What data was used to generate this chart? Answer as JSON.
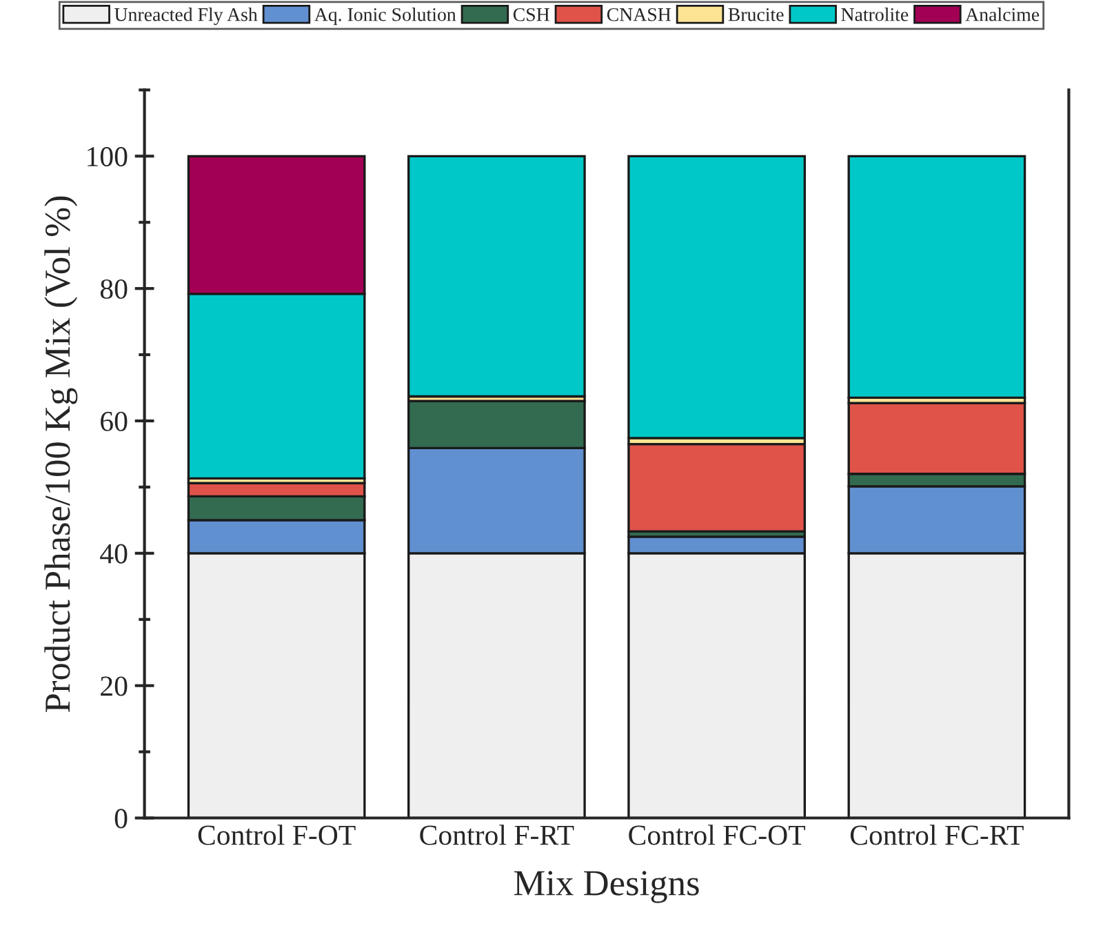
{
  "chart_data": {
    "type": "bar",
    "stacked": true,
    "xlabel": "Mix Designs",
    "ylabel": "Product Phase/100 Kg Mix (Vol %)",
    "categories": [
      "Control F-OT",
      "Control F-RT",
      "Control FC-OT",
      "Control FC-RT"
    ],
    "series": [
      {
        "name": "Unreacted Fly Ash",
        "color": "#efefef",
        "values": [
          40,
          40,
          40,
          40
        ]
      },
      {
        "name": "Aq. Ionic Solution",
        "color": "#6190d0",
        "values": [
          5.0,
          15.9,
          2.5,
          10.1
        ]
      },
      {
        "name": "CSH",
        "color": "#336b50",
        "values": [
          3.6,
          7.1,
          0.8,
          1.9
        ]
      },
      {
        "name": "CNASH",
        "color": "#df5349",
        "values": [
          2.0,
          0,
          13.2,
          10.7
        ]
      },
      {
        "name": "Brucite",
        "color": "#fde494",
        "values": [
          0.7,
          0.7,
          0.9,
          0.8
        ]
      },
      {
        "name": "Natrolite",
        "color": "#00c8c8",
        "values": [
          27.9,
          36.3,
          42.6,
          36.5
        ]
      },
      {
        "name": "Analcime",
        "color": "#a20054",
        "values": [
          20.8,
          0,
          0,
          0
        ]
      }
    ],
    "ylim": [
      0,
      110
    ],
    "yticks": [
      0,
      20,
      40,
      60,
      80,
      100
    ],
    "grid": false,
    "legend": "top"
  }
}
